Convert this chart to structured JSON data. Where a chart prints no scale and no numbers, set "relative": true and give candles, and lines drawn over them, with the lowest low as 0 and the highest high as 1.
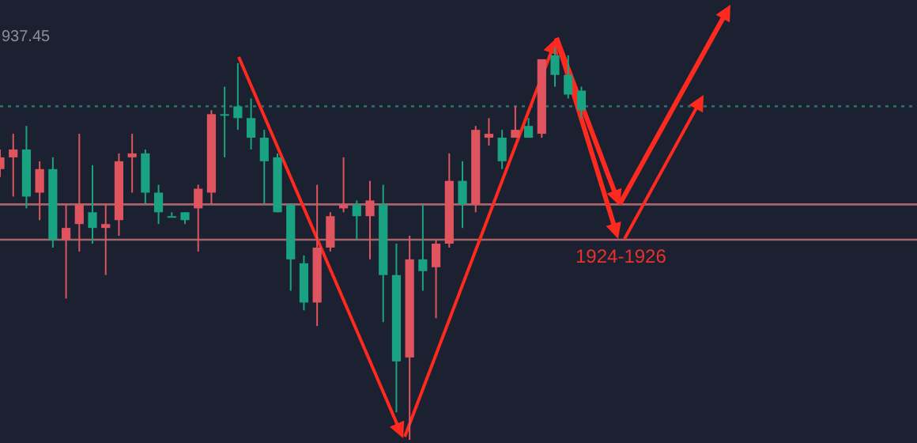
{
  "chart_data": {
    "type": "candlestick",
    "relative": true,
    "categories": [
      null,
      null,
      null,
      null,
      null,
      null,
      null,
      null,
      null,
      null,
      null,
      null,
      null,
      null,
      null,
      null,
      null,
      null,
      null,
      null,
      null,
      null,
      null,
      null,
      null,
      null,
      null,
      null,
      null,
      null,
      null,
      null,
      null,
      null,
      null,
      null,
      null,
      null,
      null,
      null,
      null,
      null,
      null,
      null,
      null
    ],
    "ohlc": [
      [
        0.72,
        0.74,
        0.67,
        0.69
      ],
      [
        0.74,
        0.78,
        0.62,
        0.72
      ],
      [
        0.62,
        0.8,
        0.59,
        0.74
      ],
      [
        0.69,
        0.71,
        0.56,
        0.63
      ],
      [
        0.51,
        0.72,
        0.49,
        0.69
      ],
      [
        0.54,
        0.6,
        0.36,
        0.51
      ],
      [
        0.6,
        0.78,
        0.48,
        0.55
      ],
      [
        0.54,
        0.7,
        0.5,
        0.58
      ],
      [
        0.55,
        0.6,
        0.42,
        0.54
      ],
      [
        0.71,
        0.73,
        0.52,
        0.56
      ],
      [
        0.73,
        0.78,
        0.63,
        0.72
      ],
      [
        0.63,
        0.74,
        0.6,
        0.73
      ],
      [
        0.58,
        0.65,
        0.55,
        0.63
      ],
      [
        0.57,
        0.58,
        0.57,
        0.57
      ],
      [
        0.56,
        0.58,
        0.55,
        0.58
      ],
      [
        0.64,
        0.65,
        0.48,
        0.59
      ],
      [
        0.83,
        0.84,
        0.6,
        0.63
      ],
      [
        0.83,
        0.9,
        0.72,
        0.83
      ],
      [
        0.82,
        0.96,
        0.79,
        0.85
      ],
      [
        0.77,
        0.87,
        0.74,
        0.82
      ],
      [
        0.71,
        0.79,
        0.6,
        0.77
      ],
      [
        0.58,
        0.73,
        0.58,
        0.72
      ],
      [
        0.46,
        0.6,
        0.38,
        0.6
      ],
      [
        0.35,
        0.47,
        0.33,
        0.45
      ],
      [
        0.49,
        0.65,
        0.29,
        0.35
      ],
      [
        0.57,
        0.58,
        0.48,
        0.49
      ],
      [
        0.6,
        0.72,
        0.58,
        0.59
      ],
      [
        0.57,
        0.61,
        0.51,
        0.6
      ],
      [
        0.61,
        0.66,
        0.46,
        0.57
      ],
      [
        0.42,
        0.65,
        0.3,
        0.6
      ],
      [
        0.2,
        0.5,
        0.07,
        0.42
      ],
      [
        0.46,
        0.52,
        0,
        0.21
      ],
      [
        0.43,
        0.6,
        0.38,
        0.46
      ],
      [
        0.5,
        0.51,
        0.31,
        0.44
      ],
      [
        0.66,
        0.73,
        0.49,
        0.5
      ],
      [
        0.6,
        0.71,
        0.54,
        0.66
      ],
      [
        0.79,
        0.8,
        0.58,
        0.6
      ],
      [
        0.78,
        0.82,
        0.75,
        0.77
      ],
      [
        0.71,
        0.79,
        0.69,
        0.77
      ],
      [
        0.79,
        0.85,
        0.77,
        0.77
      ],
      [
        0.77,
        0.82,
        0.77,
        0.8
      ],
      [
        0.97,
        0.97,
        0.77,
        0.78
      ],
      [
        0.93,
        1,
        0.9,
        0.98
      ],
      [
        0.88,
        0.98,
        0.87,
        0.93
      ],
      [
        0.84,
        0.9,
        0.82,
        0.89
      ]
    ],
    "colors": [
      "#e0545f",
      "#e0545f",
      "#1aa383",
      "#e0545f",
      "#1aa383",
      "#e0545f",
      "#e0545f",
      "#1aa383",
      "#e0545f",
      "#e0545f",
      "#e0545f",
      "#1aa383",
      "#1aa383",
      "#1aa383",
      "#1aa383",
      "#e0545f",
      "#e0545f",
      "#1aa383",
      "#1aa383",
      "#1aa383",
      "#1aa383",
      "#1aa383",
      "#1aa383",
      "#1aa383",
      "#e0545f",
      "#e0545f",
      "#e0545f",
      "#1aa383",
      "#e0545f",
      "#1aa383",
      "#1aa383",
      "#e0545f",
      "#1aa383",
      "#e0545f",
      "#e0545f",
      "#1aa383",
      "#e0545f",
      "#e0545f",
      "#1aa383",
      "#e0545f",
      "#1aa383",
      "#e0545f",
      "#1aa383",
      "#1aa383",
      "#1aa383"
    ],
    "ref_lines": [
      {
        "axis": "y",
        "value": 0.85,
        "color": "#2e6b66",
        "line_style": "dotted"
      },
      {
        "axis": "y",
        "value": 0.6,
        "color": "#a8646c",
        "line_style": "solid"
      },
      {
        "axis": "y",
        "value": 0.51,
        "color": "#a8646c",
        "line_style": "solid"
      }
    ],
    "annotations": [
      "937.45",
      "1924-1926"
    ]
  }
}
